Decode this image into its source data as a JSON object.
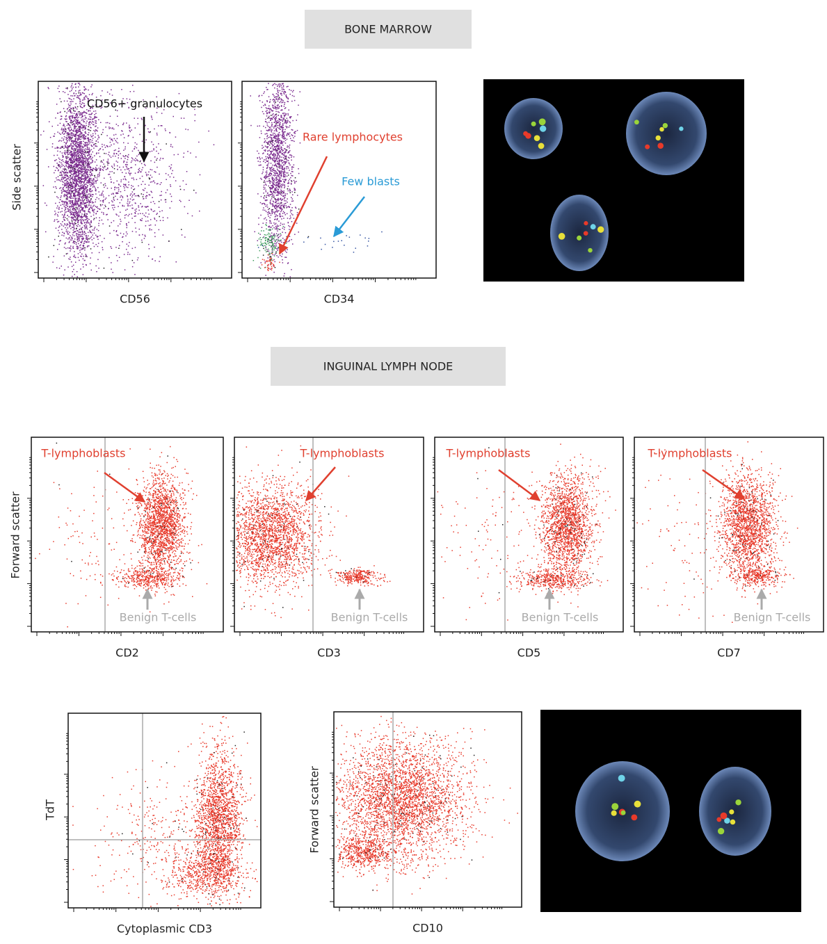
{
  "sections": [
    {
      "title": "BONE MARROW"
    },
    {
      "title": "INGUINAL LYMPH NODE"
    }
  ],
  "plots": [
    {
      "x_label": "CD56",
      "y_label": "Side scatter",
      "annotations": [
        "CD56+ granulocytes"
      ]
    },
    {
      "x_label": "CD34",
      "annotations": [
        "Rare lymphocytes",
        "Few blasts"
      ]
    },
    {
      "x_label": "CD2",
      "y_label": "Forward scatter",
      "annotations": [
        "T-lymphoblasts",
        "Benign T-cells"
      ]
    },
    {
      "x_label": "CD3",
      "annotations": [
        "T-lymphoblasts",
        "Benign T-cells"
      ]
    },
    {
      "x_label": "CD5",
      "annotations": [
        "T-lymphoblasts",
        "Benign T-cells"
      ]
    },
    {
      "x_label": "CD7",
      "annotations": [
        "T-lymphoblasts",
        "Benign T-cells"
      ]
    },
    {
      "x_label": "Cytoplasmic CD3",
      "y_label": "TdT"
    },
    {
      "x_label": "CD10",
      "y_label": "Forward scatter"
    }
  ]
}
